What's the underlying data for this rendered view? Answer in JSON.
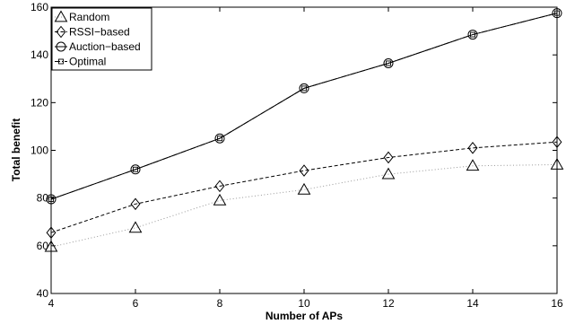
{
  "chart_data": {
    "type": "line",
    "xlabel": "Number of APs",
    "ylabel": "Total benefit",
    "xlim": [
      4,
      16
    ],
    "ylim": [
      40,
      160
    ],
    "xticks": [
      4,
      6,
      8,
      10,
      12,
      14,
      16
    ],
    "yticks": [
      40,
      60,
      80,
      100,
      120,
      140,
      160
    ],
    "grid": false,
    "legend_position": "top-left",
    "x": [
      4,
      6,
      8,
      10,
      12,
      14,
      16
    ],
    "series": [
      {
        "name": "Random",
        "marker": "triangle",
        "line_style": "dotted",
        "color": "#999999",
        "values": [
          59.5,
          67.5,
          79,
          83.5,
          90,
          93.5,
          94
        ]
      },
      {
        "name": "RSSI−based",
        "marker": "diamond",
        "line_style": "dashed",
        "color": "#000000",
        "values": [
          65.5,
          77.5,
          85,
          91.5,
          97,
          101,
          103.5
        ]
      },
      {
        "name": "Auction−based",
        "marker": "circle",
        "line_style": "solid",
        "color": "#000000",
        "values": [
          79.5,
          92,
          105,
          126,
          136.5,
          148.5,
          157.5
        ]
      },
      {
        "name": "Optimal",
        "marker": "square",
        "line_style": "dashdot",
        "color": "#000000",
        "values": [
          79.5,
          92,
          105,
          126,
          136.5,
          148.5,
          157.5
        ]
      }
    ]
  }
}
